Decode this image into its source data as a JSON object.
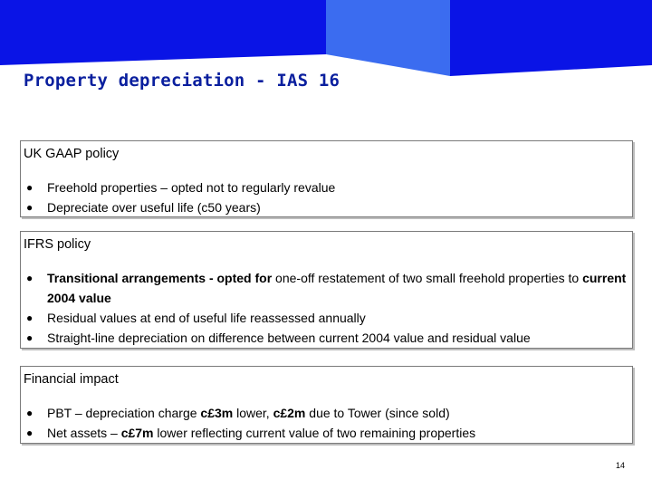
{
  "slide": {
    "title": "Property depreciation - IAS 16",
    "page_number": "14",
    "colors": {
      "title": "#0a1f9e",
      "banner_dark": "#0a14e6",
      "banner_light": "#3b6cf0"
    }
  },
  "sections": [
    {
      "title": "UK GAAP policy",
      "bullets": [
        [
          {
            "t": "Freehold properties – opted not to regularly revalue",
            "b": false
          }
        ],
        [
          {
            "t": "Depreciate over useful life (c50 years)",
            "b": false
          }
        ]
      ]
    },
    {
      "title": "IFRS policy",
      "bullets": [
        [
          {
            "t": "Transitional arrangements - opted for",
            "b": true
          },
          {
            "t": " one-off restatement of two small freehold properties to ",
            "b": false
          },
          {
            "t": "current 2004 value",
            "b": true
          }
        ],
        [
          {
            "t": "Residual values at end of useful life reassessed annually",
            "b": false
          }
        ],
        [
          {
            "t": "Straight-line depreciation on difference between current 2004 value and residual value",
            "b": false
          }
        ]
      ]
    },
    {
      "title": "Financial impact",
      "bullets": [
        [
          {
            "t": "PBT – depreciation charge ",
            "b": false
          },
          {
            "t": "c£3m",
            "b": true
          },
          {
            "t": " lower, ",
            "b": false
          },
          {
            "t": "c£2m",
            "b": true
          },
          {
            "t": " due to Tower (since sold)",
            "b": false
          }
        ],
        [
          {
            "t": "Net assets – ",
            "b": false
          },
          {
            "t": "c£7m",
            "b": true
          },
          {
            "t": " lower reflecting current value of two remaining properties",
            "b": false
          }
        ]
      ]
    }
  ]
}
